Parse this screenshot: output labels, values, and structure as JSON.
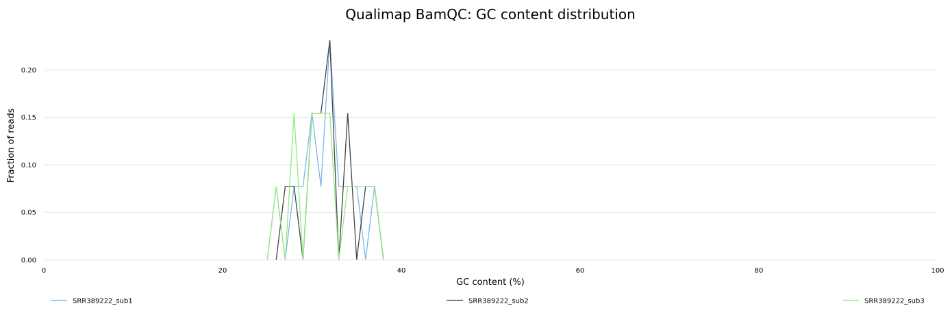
{
  "chart_data": {
    "type": "line",
    "title": "Qualimap BamQC: GC content distribution",
    "xlabel": "GC content (%)",
    "ylabel": "Fraction of reads",
    "xlim": [
      0,
      100
    ],
    "ylim": [
      0,
      0.23
    ],
    "x_ticks": [
      0,
      20,
      40,
      60,
      80,
      100
    ],
    "x_tick_labels": [
      "0",
      "20",
      "40",
      "60",
      "80",
      "100"
    ],
    "y_ticks": [
      0,
      0.05,
      0.1,
      0.15,
      0.2
    ],
    "y_tick_labels": [
      "0.00",
      "0.05",
      "0.10",
      "0.15",
      "0.20"
    ],
    "grid": "horizontal",
    "legend_position": "bottom",
    "series": [
      {
        "name": "SRR389222_sub1",
        "color": "#7cb5ec",
        "x": [
          25,
          26,
          27,
          28,
          29,
          30,
          31,
          32,
          33,
          34,
          35,
          36,
          37,
          38
        ],
        "y": [
          0,
          0.077,
          0,
          0.077,
          0.077,
          0.154,
          0.077,
          0.231,
          0.077,
          0.077,
          0.077,
          0,
          0.077,
          0
        ]
      },
      {
        "name": "SRR389222_sub2",
        "color": "#434348",
        "x": [
          26,
          27,
          28,
          29,
          30,
          31,
          32,
          33,
          34,
          35,
          36,
          37,
          38
        ],
        "y": [
          0,
          0.077,
          0.077,
          0,
          0.154,
          0.154,
          0.231,
          0,
          0.154,
          0,
          0.077,
          0.077,
          0
        ]
      },
      {
        "name": "SRR389222_sub3",
        "color": "#90ed7d",
        "x": [
          25,
          26,
          27,
          28,
          29,
          30,
          31,
          32,
          33,
          34,
          35,
          36,
          37,
          38
        ],
        "y": [
          0,
          0.077,
          0,
          0.154,
          0,
          0.154,
          0.154,
          0.154,
          0,
          0.077,
          0.077,
          0.077,
          0.077,
          0
        ]
      }
    ]
  }
}
